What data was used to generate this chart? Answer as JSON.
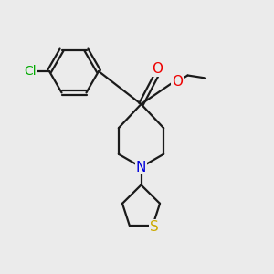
{
  "bg_color": "#ebebeb",
  "bond_color": "#1a1a1a",
  "cl_color": "#00aa00",
  "o_color": "#ee0000",
  "n_color": "#0000dd",
  "s_color": "#ccaa00",
  "line_width": 1.6,
  "figsize": [
    3.0,
    3.0
  ],
  "dpi": 100,
  "xlim": [
    0,
    10
  ],
  "ylim": [
    0,
    10
  ]
}
